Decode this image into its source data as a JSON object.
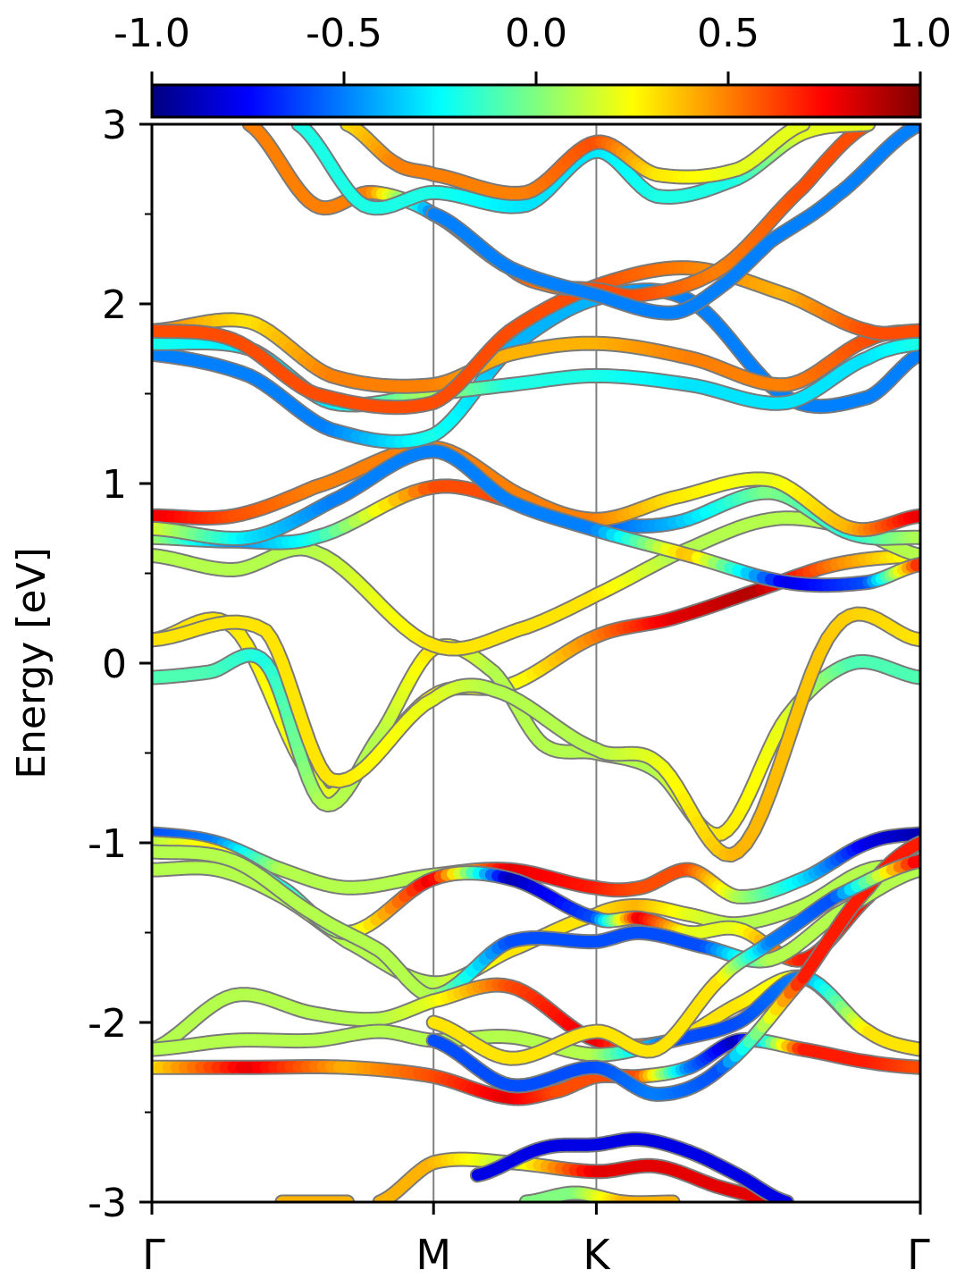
{
  "chart_data": {
    "type": "line",
    "title": "",
    "xlabel": "",
    "ylabel": "Energy [eV]",
    "ylim": [
      -3,
      3
    ],
    "xlim": [
      0,
      4.72
    ],
    "y_ticks": [
      "3",
      "2",
      "1",
      "0",
      "-1",
      "-2",
      "-3"
    ],
    "y_tick_values": [
      3,
      2,
      1,
      0,
      -1,
      -2,
      -3
    ],
    "y_minor_ticks": [
      2.5,
      1.5,
      0.5,
      -0.5,
      -1.5,
      -2.5
    ],
    "kpoints": [
      {
        "label": "Γ",
        "x": 0
      },
      {
        "label": "M",
        "x": 1.73
      },
      {
        "label": "K",
        "x": 2.73
      },
      {
        "label": "Γ",
        "x": 4.72
      }
    ],
    "colorbar": {
      "ticks": [
        "-1.0",
        "-0.5",
        "0.0",
        "0.5",
        "1.0"
      ],
      "tick_values": [
        -1.0,
        -0.5,
        0.0,
        0.5,
        1.0
      ],
      "range": [
        -1,
        1
      ],
      "colormap": "jet",
      "stops": [
        "#00007f",
        "#0000ff",
        "#007fff",
        "#00ffff",
        "#7fff7f",
        "#ffff00",
        "#ff7f00",
        "#ff0000",
        "#7f0000"
      ]
    },
    "grid": false,
    "series": [
      {
        "x": [
          0,
          0.5,
          1.0,
          1.2,
          1.73,
          2.2,
          2.73,
          3.2,
          3.7,
          4.2,
          4.72
        ],
        "y": [
          0.13,
          0.2,
          -0.65,
          -0.65,
          -0.18,
          -0.12,
          0.15,
          0.25,
          0.4,
          0.55,
          0.6
        ],
        "c": [
          0.3,
          0.3,
          0.2,
          0.2,
          0.3,
          0.2,
          0.5,
          0.8,
          0.9,
          0.5,
          0.2
        ]
      },
      {
        "x": [
          0,
          0.35,
          0.7,
          1.05,
          1.4,
          1.73,
          2.1,
          2.4,
          2.73,
          3.1,
          3.5,
          3.9,
          4.3,
          4.72
        ],
        "y": [
          -0.08,
          -0.05,
          0.0,
          -0.78,
          -0.4,
          0.08,
          -0.05,
          -0.45,
          -0.5,
          -0.6,
          -0.95,
          -0.3,
          0.0,
          -0.08
        ],
        "c": [
          -0.1,
          -0.1,
          -0.2,
          0.1,
          0.1,
          0.3,
          0.1,
          0.1,
          0.1,
          0.1,
          0.3,
          0.2,
          -0.1,
          -0.1
        ]
      },
      {
        "x": [
          0,
          0.7,
          1.1,
          1.73,
          2.1,
          2.73,
          3.1,
          3.6,
          4.2,
          4.72
        ],
        "y": [
          0.13,
          0.18,
          -0.65,
          -0.2,
          -0.15,
          -0.48,
          -0.55,
          -1.05,
          0.2,
          0.13
        ],
        "c": [
          0.3,
          0.3,
          0.3,
          0.2,
          0.1,
          0.1,
          0.2,
          0.4,
          0.35,
          0.3
        ]
      },
      {
        "x": [
          0,
          0.5,
          1.0,
          1.73,
          2.3,
          2.73,
          3.2,
          3.8,
          4.3,
          4.72
        ],
        "y": [
          0.6,
          0.52,
          0.62,
          0.1,
          0.2,
          0.38,
          0.6,
          0.8,
          0.75,
          0.6
        ],
        "c": [
          0.1,
          0.1,
          0.1,
          0.3,
          0.3,
          0.3,
          0.1,
          0.1,
          0.1,
          0.1
        ]
      },
      {
        "x": [
          0,
          0.5,
          1.0,
          1.73,
          2.3,
          2.73,
          3.2,
          3.8,
          4.3,
          4.72
        ],
        "y": [
          0.7,
          0.68,
          0.7,
          0.98,
          0.88,
          0.78,
          0.78,
          0.95,
          0.72,
          0.7
        ],
        "c": [
          0.1,
          -0.5,
          -0.2,
          0.6,
          0.6,
          -0.6,
          -0.4,
          0.0,
          -0.2,
          0.1
        ]
      },
      {
        "x": [
          0,
          0.5,
          1.0,
          1.73,
          2.3,
          2.73,
          3.2,
          3.8,
          4.3,
          4.72
        ],
        "y": [
          0.82,
          0.82,
          0.98,
          1.2,
          0.92,
          0.8,
          0.92,
          1.02,
          0.75,
          0.82
        ],
        "c": [
          0.8,
          0.6,
          0.5,
          0.5,
          0.5,
          0.5,
          0.3,
          0.2,
          0.4,
          0.8
        ]
      },
      {
        "x": [
          0,
          0.6,
          1.1,
          1.73,
          2.2,
          2.73,
          3.3,
          3.9,
          4.4,
          4.72
        ],
        "y": [
          0.75,
          0.7,
          0.9,
          1.18,
          0.9,
          0.74,
          0.6,
          0.45,
          0.45,
          0.55
        ],
        "c": [
          0.2,
          -0.3,
          -0.5,
          -0.5,
          -0.5,
          -0.5,
          0.4,
          -0.8,
          -0.6,
          0.7
        ]
      },
      {
        "x": [
          0,
          0.6,
          1.1,
          1.73,
          2.2,
          2.73,
          3.3,
          3.9,
          4.4,
          4.72
        ],
        "y": [
          1.72,
          1.6,
          1.3,
          1.27,
          1.75,
          2.03,
          2.02,
          1.48,
          1.48,
          1.72
        ],
        "c": [
          -0.5,
          -0.5,
          -0.5,
          -0.2,
          -0.4,
          -0.4,
          -0.5,
          -0.5,
          -0.5,
          -0.5
        ]
      },
      {
        "x": [
          0,
          0.6,
          1.1,
          1.73,
          2.2,
          2.73,
          3.3,
          3.9,
          4.4,
          4.72
        ],
        "y": [
          1.78,
          1.75,
          1.45,
          1.5,
          1.55,
          1.6,
          1.55,
          1.45,
          1.7,
          1.78
        ],
        "c": [
          -0.2,
          -0.3,
          -0.3,
          0.1,
          -0.2,
          -0.2,
          -0.3,
          -0.3,
          -0.3,
          -0.2
        ]
      },
      {
        "x": [
          0,
          0.6,
          1.1,
          1.73,
          2.2,
          2.73,
          3.3,
          3.9,
          4.4,
          4.72
        ],
        "y": [
          1.85,
          1.9,
          1.6,
          1.55,
          1.72,
          1.78,
          1.7,
          1.55,
          1.8,
          1.85
        ],
        "c": [
          0.5,
          0.3,
          0.5,
          0.5,
          0.4,
          0.4,
          0.5,
          0.5,
          0.6,
          0.6
        ]
      },
      {
        "x": [
          0,
          0.5,
          1.0,
          1.73,
          2.2,
          2.73,
          3.3,
          3.9,
          4.4,
          4.72
        ],
        "y": [
          1.85,
          1.8,
          1.5,
          1.45,
          1.85,
          2.1,
          2.2,
          2.05,
          1.85,
          1.85
        ],
        "c": [
          0.6,
          0.6,
          0.6,
          0.6,
          0.6,
          0.6,
          0.5,
          0.4,
          0.6,
          0.6
        ]
      },
      {
        "x": [
          0.6,
          1.0,
          1.35,
          1.73,
          2.2,
          2.45,
          2.73,
          3.0,
          3.5,
          4.0,
          4.4
        ],
        "y": [
          3.0,
          2.55,
          2.62,
          2.5,
          2.2,
          2.1,
          2.08,
          2.05,
          2.2,
          2.65,
          3.0
        ],
        "c": [
          0.5,
          0.5,
          0.5,
          -0.5,
          0.6,
          0.5,
          0.6,
          0.6,
          0.5,
          0.6,
          0.6
        ]
      },
      {
        "x": [
          0.9,
          1.3,
          1.73,
          2.3,
          2.73,
          3.1,
          3.6,
          4.0,
          4.4
        ],
        "y": [
          3.0,
          2.55,
          2.62,
          2.55,
          2.85,
          2.6,
          2.7,
          2.95,
          3.0
        ],
        "c": [
          -0.2,
          -0.2,
          -0.2,
          -0.3,
          -0.3,
          -0.2,
          -0.2,
          0.2,
          0.2
        ]
      },
      {
        "x": [
          1.2,
          1.5,
          1.73,
          2.3,
          2.73,
          3.1,
          3.6,
          4.0
        ],
        "y": [
          3.0,
          2.78,
          2.72,
          2.62,
          2.9,
          2.72,
          2.75,
          3.0
        ],
        "c": [
          0.3,
          0.5,
          0.5,
          0.5,
          0.6,
          0.3,
          0.2,
          0.2
        ]
      },
      {
        "x": [
          1.73,
          2.2,
          2.73,
          3.2,
          3.5,
          3.8,
          4.2,
          4.72
        ],
        "y": [
          2.5,
          2.2,
          2.05,
          1.95,
          2.1,
          2.35,
          2.6,
          3.0
        ],
        "c": [
          -0.5,
          -0.5,
          -0.5,
          -0.5,
          -0.5,
          -0.5,
          -0.5,
          -0.5
        ]
      },
      {
        "x": [
          0,
          0.4,
          0.8,
          1.2,
          1.73,
          2.2,
          2.73,
          3.0,
          3.3,
          3.6,
          4.0,
          4.4,
          4.72
        ],
        "y": [
          -0.95,
          -1.0,
          -1.15,
          -1.25,
          -1.18,
          -1.15,
          -1.25,
          -1.25,
          -1.15,
          -1.3,
          -1.2,
          -1.0,
          -0.95
        ],
        "c": [
          -0.6,
          -0.5,
          0.1,
          0.1,
          0.1,
          0.8,
          0.7,
          0.6,
          0.6,
          0.1,
          -0.3,
          -0.8,
          -0.9
        ]
      },
      {
        "x": [
          0,
          0.4,
          0.8,
          1.2,
          1.73,
          2.2,
          2.73,
          3.0,
          3.3,
          3.6,
          4.0,
          4.4,
          4.72
        ],
        "y": [
          -1.15,
          -1.15,
          -1.3,
          -1.55,
          -1.78,
          -1.6,
          -1.4,
          -1.35,
          -1.4,
          -1.45,
          -1.35,
          -1.15,
          -1.15
        ],
        "c": [
          0.1,
          0.1,
          0.1,
          0.1,
          0.1,
          0.3,
          0.3,
          0.4,
          0.2,
          0.1,
          0.1,
          0.1,
          0.1
        ]
      },
      {
        "x": [
          0,
          0.4,
          0.8,
          1.2,
          1.73,
          2.2,
          2.73,
          3.0,
          3.3,
          3.6,
          4.0,
          4.4,
          4.72
        ],
        "y": [
          -1.0,
          -1.05,
          -1.25,
          -1.5,
          -1.2,
          -1.2,
          -1.42,
          -1.42,
          -1.5,
          -1.48,
          -1.65,
          -1.3,
          -1.0
        ],
        "c": [
          0.1,
          0.3,
          -0.2,
          0.1,
          0.8,
          -0.9,
          -0.6,
          0.8,
          0.2,
          0.2,
          0.7,
          0.7,
          0.7
        ]
      },
      {
        "x": [
          0,
          0.5,
          1.0,
          1.4,
          1.73,
          2.2,
          2.73,
          3.0,
          3.4,
          3.8,
          4.2,
          4.72
        ],
        "y": [
          -1.05,
          -1.1,
          -1.4,
          -1.6,
          -1.85,
          -1.55,
          -1.55,
          -1.5,
          -1.58,
          -1.65,
          -1.4,
          -1.15
        ],
        "c": [
          0.1,
          0.1,
          0.1,
          0.1,
          0.1,
          -0.6,
          -0.6,
          -0.6,
          -0.6,
          0.1,
          0.1,
          0.1
        ]
      },
      {
        "x": [
          0,
          0.5,
          1.0,
          1.4,
          1.73,
          2.2,
          2.73,
          3.2,
          3.6,
          4.0,
          4.4,
          4.72
        ],
        "y": [
          -2.15,
          -1.85,
          -1.95,
          -1.98,
          -1.88,
          -1.8,
          -2.1,
          -2.1,
          -1.9,
          -1.75,
          -2.05,
          -2.15
        ],
        "c": [
          0.1,
          0.1,
          0.1,
          0.1,
          0.2,
          0.6,
          0.8,
          0.3,
          0.3,
          0.2,
          0.3,
          0.3
        ]
      },
      {
        "x": [
          0,
          0.5,
          1.0,
          1.4,
          1.73,
          2.2,
          2.73,
          3.2,
          3.6,
          4.0,
          4.4,
          4.72
        ],
        "y": [
          -2.15,
          -2.1,
          -2.1,
          -2.05,
          -2.1,
          -2.08,
          -2.18,
          -2.1,
          -2.0,
          -1.75,
          -2.05,
          -2.15
        ],
        "c": [
          0.1,
          0.1,
          0.1,
          0.1,
          0.1,
          0.1,
          0.1,
          -0.6,
          -0.6,
          -0.5,
          0.3,
          0.3
        ]
      },
      {
        "x": [
          0,
          0.6,
          1.2,
          1.73,
          2.2,
          2.5,
          2.73,
          3.0,
          3.3,
          3.6,
          4.0,
          4.4,
          4.72
        ],
        "y": [
          -2.25,
          -2.25,
          -2.25,
          -2.3,
          -2.42,
          -2.38,
          -2.3,
          -2.3,
          -2.25,
          -2.1,
          -2.15,
          -2.22,
          -2.25
        ],
        "c": [
          0.3,
          0.8,
          0.4,
          0.6,
          0.8,
          0.6,
          0.6,
          0.6,
          -0.5,
          -0.9,
          0.7,
          0.7,
          0.6
        ]
      },
      {
        "x": [
          1.73,
          2.2,
          2.73,
          3.1,
          3.5,
          4.0,
          4.4,
          4.72
        ],
        "y": [
          -2.1,
          -2.35,
          -2.25,
          -2.4,
          -2.25,
          -1.75,
          -1.25,
          -1.0
        ],
        "c": [
          -0.6,
          -0.6,
          -0.6,
          -0.5,
          -0.6,
          0.7,
          0.7,
          0.7
        ]
      },
      {
        "x": [
          1.73,
          2.2,
          2.73,
          3.1,
          3.5,
          3.8,
          4.2,
          4.72
        ],
        "y": [
          -2.0,
          -2.2,
          -2.05,
          -2.15,
          -1.75,
          -1.55,
          -1.3,
          -1.1
        ],
        "c": [
          0.3,
          0.3,
          0.3,
          0.3,
          0.3,
          -0.5,
          -0.6,
          0.8
        ]
      },
      {
        "x": [
          1.4,
          1.73,
          2.2,
          2.73,
          3.1,
          3.5,
          3.9
        ],
        "y": [
          -3.0,
          -2.78,
          -2.78,
          -2.83,
          -2.8,
          -2.92,
          -3.0
        ],
        "c": [
          0.4,
          0.4,
          0.1,
          0.8,
          0.8,
          0.8,
          0.8
        ]
      },
      {
        "x": [
          2.0,
          2.4,
          2.73,
          3.0,
          3.3,
          3.6,
          3.9
        ],
        "y": [
          -2.85,
          -2.7,
          -2.68,
          -2.65,
          -2.72,
          -2.85,
          -3.0
        ],
        "c": [
          -0.8,
          -0.8,
          -0.8,
          -0.8,
          -0.8,
          -0.8,
          -0.8
        ]
      },
      {
        "x": [
          0.8,
          1.2
        ],
        "y": [
          -3.0,
          -3.0
        ],
        "c": [
          0.4,
          0.4
        ]
      },
      {
        "x": [
          2.3,
          2.6,
          2.9,
          3.2
        ],
        "y": [
          -3.0,
          -2.95,
          -3.0,
          -3.0
        ],
        "c": [
          0.0,
          0.0,
          0.4,
          0.4
        ]
      }
    ]
  }
}
